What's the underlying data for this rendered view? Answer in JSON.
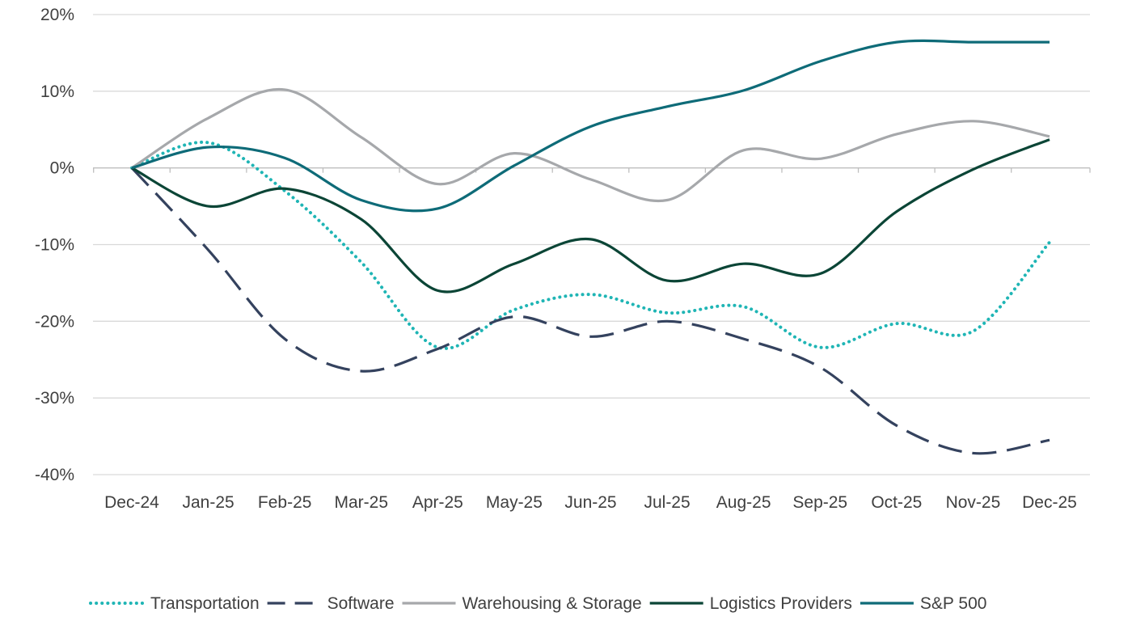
{
  "chart_data": {
    "type": "line",
    "title": "",
    "xlabel": "",
    "ylabel": "",
    "categories": [
      "Dec-24",
      "Jan-25",
      "Feb-25",
      "Mar-25",
      "Apr-25",
      "May-25",
      "Jun-25",
      "Jul-25",
      "Aug-25",
      "Sep-25",
      "Oct-25",
      "Nov-25",
      "Dec-25"
    ],
    "ylim": [
      -40,
      20
    ],
    "yticks": [
      20,
      10,
      0,
      -10,
      -20,
      -30,
      -40
    ],
    "ytick_labels": [
      "20%",
      "10%",
      "0%",
      "-10%",
      "-20%",
      "-30%",
      "-40%"
    ],
    "grid": "horizontal",
    "smooth": true,
    "legend_position": "bottom",
    "series": [
      {
        "name": "Transportation",
        "color": "#1FB5B5",
        "style": "dotted",
        "values": [
          0,
          3.3,
          -3,
          -12.3,
          -23.4,
          -18.5,
          -16.5,
          -18.9,
          -18.1,
          -23.4,
          -20.3,
          -21.3,
          -9.7
        ]
      },
      {
        "name": "Software",
        "color": "#34425E",
        "style": "dashed",
        "values": [
          0,
          -10.7,
          -22.3,
          -26.5,
          -23.6,
          -19.4,
          -22,
          -20,
          -22.3,
          -26,
          -33.6,
          -37.2,
          -35.5
        ]
      },
      {
        "name": "Warehousing & Storage",
        "color": "#A6A8AB",
        "style": "solid",
        "values": [
          0,
          6.5,
          10.2,
          4,
          -2.1,
          1.9,
          -1.5,
          -4.2,
          2.3,
          1.2,
          4.4,
          6.1,
          4.1
        ]
      },
      {
        "name": "Logistics Providers",
        "color": "#0B4536",
        "style": "solid",
        "values": [
          0,
          -5,
          -2.7,
          -6.7,
          -16,
          -12.5,
          -9.3,
          -14.7,
          -12.5,
          -13.8,
          -5.7,
          -0.2,
          3.7
        ]
      },
      {
        "name": "S&P 500",
        "color": "#0E6B78",
        "style": "solid",
        "values": [
          0,
          2.7,
          1.3,
          -4.2,
          -5.3,
          0.3,
          5.4,
          8,
          10.1,
          13.9,
          16.4,
          16.4,
          16.4
        ]
      }
    ]
  }
}
